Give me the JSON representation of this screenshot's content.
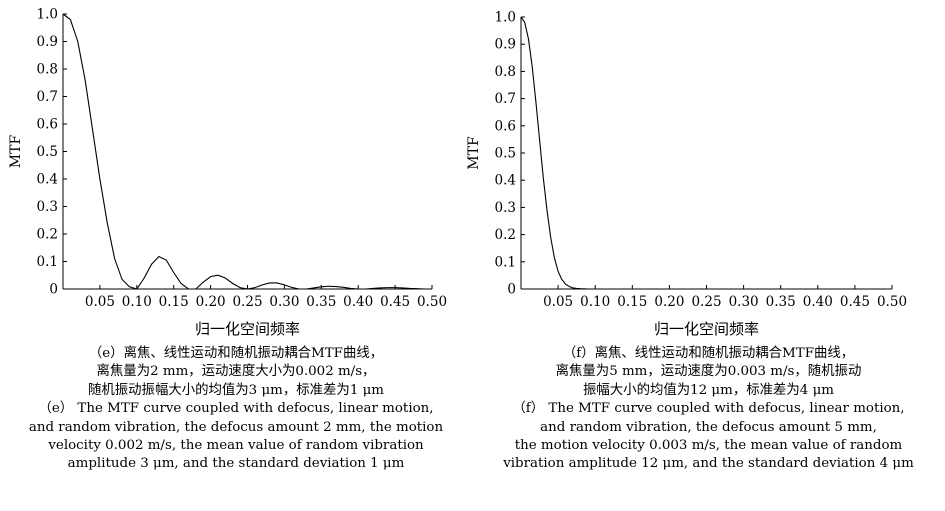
{
  "chart_data": [
    {
      "id": "e",
      "type": "line",
      "title": "",
      "xlabel": "归一化空间频率",
      "ylabel": "MTF",
      "xlim": [
        0,
        0.5
      ],
      "ylim": [
        0,
        1.0
      ],
      "x_ticks": [
        "0.05",
        "0.10",
        "0.15",
        "0.20",
        "0.25",
        "0.30",
        "0.35",
        "0.40",
        "0.45",
        "0.50"
      ],
      "y_ticks": [
        "0",
        "0.1",
        "0.2",
        "0.3",
        "0.4",
        "0.5",
        "0.6",
        "0.7",
        "0.8",
        "0.9",
        "1.0"
      ],
      "grid": false,
      "series": [
        {
          "x": [
            0,
            0.01,
            0.02,
            0.03,
            0.04,
            0.05,
            0.06,
            0.07,
            0.08,
            0.09,
            0.1,
            0.11,
            0.12,
            0.13,
            0.14,
            0.15,
            0.16,
            0.17,
            0.18,
            0.19,
            0.2,
            0.21,
            0.22,
            0.23,
            0.24,
            0.25,
            0.26,
            0.27,
            0.28,
            0.29,
            0.3,
            0.31,
            0.32,
            0.33,
            0.34,
            0.35,
            0.36,
            0.37,
            0.38,
            0.39,
            0.4,
            0.41,
            0.42,
            0.43,
            0.44,
            0.45,
            0.46,
            0.47,
            0.48,
            0.49,
            0.5
          ],
          "y": [
            1.0,
            0.98,
            0.9,
            0.76,
            0.58,
            0.4,
            0.24,
            0.11,
            0.035,
            0.008,
            0.0,
            0.04,
            0.09,
            0.118,
            0.105,
            0.06,
            0.02,
            0.0,
            0.0,
            0.025,
            0.045,
            0.05,
            0.04,
            0.02,
            0.005,
            0.0,
            0.005,
            0.015,
            0.022,
            0.022,
            0.015,
            0.006,
            0.0,
            0.0,
            0.004,
            0.008,
            0.01,
            0.009,
            0.006,
            0.002,
            0.0,
            0.0,
            0.002,
            0.004,
            0.005,
            0.005,
            0.004,
            0.002,
            0.001,
            0.0,
            0.0
          ]
        }
      ],
      "caption": [
        "（e）离焦、线性运动和随机振动耦合MTF曲线，",
        "离焦量为2 mm，运动速度大小为0.002 m/s，",
        "随机振动振幅大小的均值为3 μm，标准差为1 μm",
        "（e） The MTF curve coupled with defocus, linear motion,",
        "and random vibration, the defocus amount 2 mm, the motion",
        "velocity 0.002 m/s, the mean value of random vibration",
        "amplitude 3 μm, and the standard deviation 1 μm"
      ]
    },
    {
      "id": "f",
      "type": "line",
      "title": "",
      "xlabel": "归一化空间频率",
      "ylabel": "MTF",
      "xlim": [
        0,
        0.5
      ],
      "ylim": [
        0,
        1.0
      ],
      "x_ticks": [
        "0.05",
        "0.10",
        "0.15",
        "0.20",
        "0.25",
        "0.30",
        "0.35",
        "0.40",
        "0.45",
        "0.50"
      ],
      "y_ticks": [
        "0",
        "0.1",
        "0.2",
        "0.3",
        "0.4",
        "0.5",
        "0.6",
        "0.7",
        "0.8",
        "0.9",
        "1.0"
      ],
      "grid": false,
      "series": [
        {
          "x": [
            0,
            0.005,
            0.01,
            0.015,
            0.02,
            0.025,
            0.03,
            0.035,
            0.04,
            0.045,
            0.05,
            0.055,
            0.06,
            0.065,
            0.07,
            0.075,
            0.08,
            0.085,
            0.09,
            0.095,
            0.1,
            0.12,
            0.15,
            0.2,
            0.25,
            0.3,
            0.35,
            0.4,
            0.45,
            0.5
          ],
          "y": [
            1.0,
            0.98,
            0.92,
            0.82,
            0.69,
            0.55,
            0.41,
            0.29,
            0.19,
            0.115,
            0.065,
            0.035,
            0.018,
            0.009,
            0.004,
            0.002,
            0.001,
            0.0005,
            0.0,
            0.0,
            0.0,
            0.0,
            0.0,
            0.0,
            0.0,
            0.0,
            0.0,
            0.0,
            0.0,
            0.0
          ]
        }
      ],
      "caption": [
        "（f）离焦、线性运动和随机振动耦合MTF曲线，",
        "离焦量为5 mm，运动速度为0.003 m/s，随机振动",
        "振幅大小的均值为12 μm，标准差为4 μm",
        "（f） The MTF curve coupled with defocus, linear motion,",
        "and random vibration, the defocus amount 5 mm,",
        "the motion velocity 0.003 m/s, the mean value of random",
        "vibration amplitude 12 μm, and the standard deviation 4 μm"
      ]
    }
  ]
}
